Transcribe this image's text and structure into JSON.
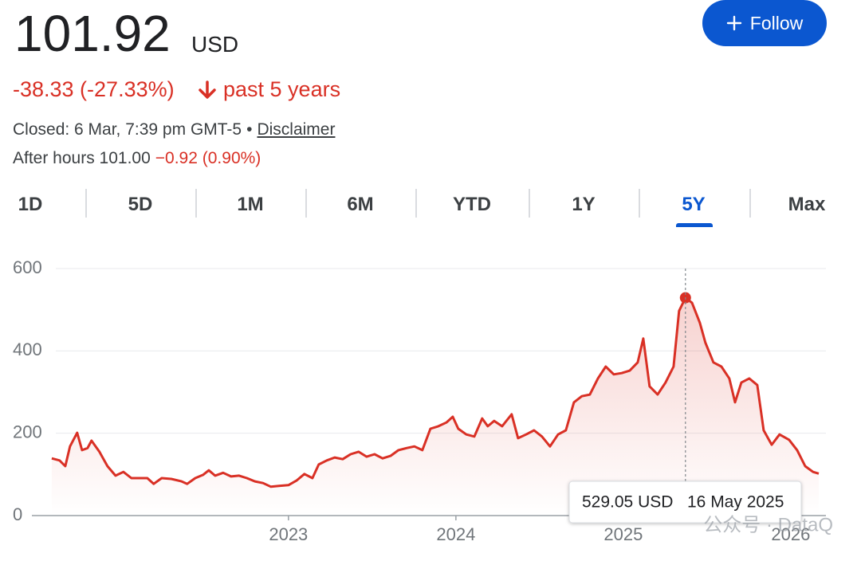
{
  "header": {
    "price": "101.92",
    "currency": "USD",
    "change": "-38.33 (-27.33%)",
    "period": "past 5 years",
    "closed": "Closed: 6 Mar, 7:39 pm GMT-5",
    "separator": "•",
    "disclaimer": "Disclaimer",
    "after_hours": "After hours 101.00",
    "after_change": "−0.92 (0.90%)",
    "follow": "Follow"
  },
  "tabs": [
    "1D",
    "5D",
    "1M",
    "6M",
    "YTD",
    "1Y",
    "5Y",
    "Max"
  ],
  "watermark": "公众号 · DataQ",
  "chart_data": {
    "type": "line",
    "color": "#d93025",
    "x": [
      2021.586,
      2021.633,
      2021.667,
      2021.695,
      2021.738,
      2021.767,
      2021.8,
      2021.824,
      2021.871,
      2021.919,
      2021.967,
      2022.014,
      2022.062,
      2022.11,
      2022.157,
      2022.195,
      2022.243,
      2022.3,
      2022.362,
      2022.395,
      2022.443,
      2022.49,
      2022.524,
      2022.562,
      2022.61,
      2022.657,
      2022.705,
      2022.752,
      2022.8,
      2022.848,
      2022.895,
      2022.943,
      2023,
      2023.048,
      2023.095,
      2023.143,
      2023.181,
      2023.229,
      2023.276,
      2023.324,
      2023.371,
      2023.419,
      2023.467,
      2023.514,
      2023.562,
      2023.61,
      2023.657,
      2023.705,
      2023.752,
      2023.8,
      2023.848,
      2023.895,
      2023.943,
      2023.981,
      2024.014,
      2024.062,
      2024.11,
      2024.157,
      2024.19,
      2024.229,
      2024.276,
      2024.333,
      2024.371,
      2024.419,
      2024.467,
      2024.514,
      2024.562,
      2024.61,
      2024.657,
      2024.705,
      2024.752,
      2024.8,
      2024.848,
      2024.895,
      2024.943,
      2024.99,
      2025.038,
      2025.086,
      2025.119,
      2025.157,
      2025.205,
      2025.252,
      2025.3,
      2025.333,
      2025.371,
      2025.41,
      2025.457,
      2025.49,
      2025.538,
      2025.586,
      2025.633,
      2025.667,
      2025.705,
      2025.752,
      2025.8,
      2025.838,
      2025.886,
      2025.933,
      2025.99,
      2026.038,
      2026.086,
      2026.133,
      2026.167
    ],
    "values": [
      139,
      134,
      120,
      168,
      201,
      159,
      164,
      182,
      155,
      120,
      97,
      106,
      91,
      91,
      91,
      77,
      91,
      89,
      83,
      77,
      91,
      99,
      110,
      97,
      104,
      95,
      97,
      91,
      83,
      79,
      70,
      72,
      74,
      85,
      101,
      91,
      124,
      134,
      141,
      137,
      149,
      155,
      143,
      149,
      139,
      145,
      159,
      164,
      168,
      159,
      211,
      217,
      226,
      240,
      211,
      197,
      192,
      236,
      217,
      230,
      217,
      246,
      188,
      197,
      207,
      192,
      168,
      197,
      207,
      275,
      290,
      294,
      333,
      362,
      343,
      346,
      352,
      372,
      430,
      314,
      294,
      323,
      362,
      497,
      529.05,
      517,
      468,
      420,
      372,
      362,
      333,
      275,
      323,
      333,
      317,
      207,
      172,
      197,
      184,
      159,
      120,
      106,
      101.92
    ],
    "xlim": [
      2021.42,
      2026.21
    ],
    "xticks": [
      2023,
      2024,
      2025,
      2026
    ],
    "ylim": [
      0,
      600
    ],
    "yticks": [
      0,
      200,
      400,
      600
    ],
    "grid": true,
    "tooltip": {
      "value_label": "529.05 USD",
      "date": "16 May 2025"
    }
  }
}
